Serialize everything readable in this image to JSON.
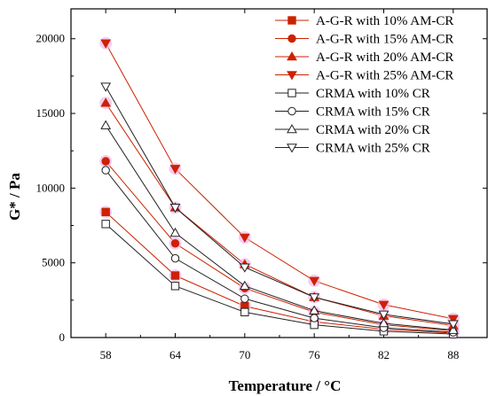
{
  "chart_data": {
    "type": "line",
    "title": "",
    "xlabel": "Temperature  / °C",
    "ylabel": "G* / Pa",
    "categories": [
      "58",
      "64",
      "70",
      "76",
      "82",
      "88"
    ],
    "x": [
      58,
      64,
      70,
      76,
      82,
      88
    ],
    "ylim": [
      0,
      22000
    ],
    "yticks": [
      "0",
      "5000",
      "10000",
      "15000",
      "20000"
    ],
    "grid": false,
    "legend_position": "top-right",
    "series": [
      {
        "name": "A-G-R with 10%  AM-CR",
        "marker": "square-filled",
        "color": "#cc2200",
        "values": [
          8400,
          4150,
          2100,
          1050,
          550,
          300
        ]
      },
      {
        "name": "A-G-R with 15%  AM-CR",
        "marker": "circle-filled",
        "color": "#cc2200",
        "values": [
          11800,
          6300,
          3300,
          1700,
          850,
          450
        ]
      },
      {
        "name": "A-G-R with 20%  AM-CR",
        "marker": "triangle-up-filled",
        "color": "#cc2200",
        "values": [
          15700,
          8700,
          4900,
          2700,
          1450,
          800
        ]
      },
      {
        "name": "A-G-R with 25%  AM-CR",
        "marker": "triangle-down-filled",
        "color": "#cc2200",
        "values": [
          19700,
          11300,
          6700,
          3800,
          2200,
          1250
        ]
      },
      {
        "name": "CRMA with 10% CR",
        "marker": "square-open",
        "color": "#222222",
        "values": [
          7600,
          3450,
          1700,
          850,
          420,
          230
        ]
      },
      {
        "name": "CRMA with 15% CR",
        "marker": "circle-open",
        "color": "#222222",
        "values": [
          11200,
          5300,
          2600,
          1300,
          650,
          350
        ]
      },
      {
        "name": "CRMA with 20% CR",
        "marker": "triangle-up-open",
        "color": "#222222",
        "values": [
          14200,
          7000,
          3450,
          1800,
          950,
          500
        ]
      },
      {
        "name": "CRMA with 25% CR",
        "marker": "triangle-down-open",
        "color": "#222222",
        "values": [
          16800,
          8700,
          4700,
          2700,
          1550,
          900
        ]
      }
    ]
  }
}
